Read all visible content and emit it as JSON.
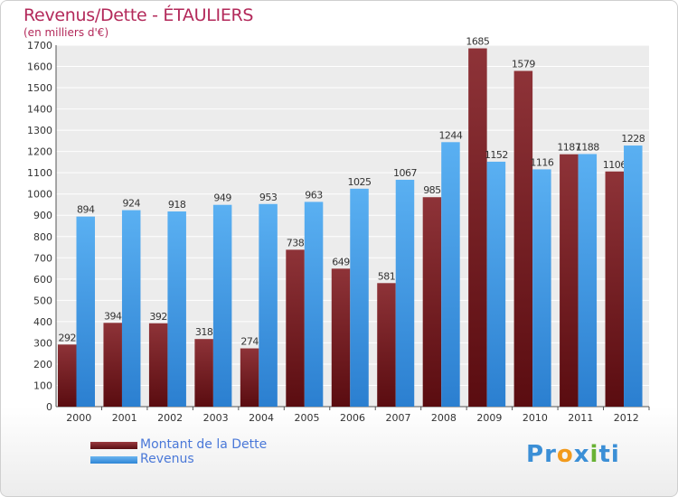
{
  "chart_data": {
    "type": "bar",
    "title": "Revenus/Dette - ÉTAULIERS",
    "subtitle": "(en milliers d'€)",
    "categories": [
      "2000",
      "2001",
      "2002",
      "2003",
      "2004",
      "2005",
      "2006",
      "2007",
      "2008",
      "2009",
      "2010",
      "2011",
      "2012"
    ],
    "series": [
      {
        "name": "Montant de la Dette",
        "color": "#7a1f24",
        "values": [
          292,
          394,
          392,
          318,
          274,
          738,
          649,
          581,
          985,
          1685,
          1579,
          1187,
          1106
        ]
      },
      {
        "name": "Revenus",
        "color": "#3f9be6",
        "values": [
          894,
          924,
          918,
          949,
          953,
          963,
          1025,
          1067,
          1244,
          1152,
          1116,
          1188,
          1228
        ]
      }
    ],
    "ylim": [
      0,
      1700
    ],
    "yticks": [
      0,
      100,
      200,
      300,
      400,
      500,
      600,
      700,
      800,
      900,
      1000,
      1100,
      1200,
      1300,
      1400,
      1500,
      1600,
      1700
    ],
    "grid": true,
    "legend": "bottom-left"
  },
  "brand": {
    "text": "Proxiti"
  }
}
